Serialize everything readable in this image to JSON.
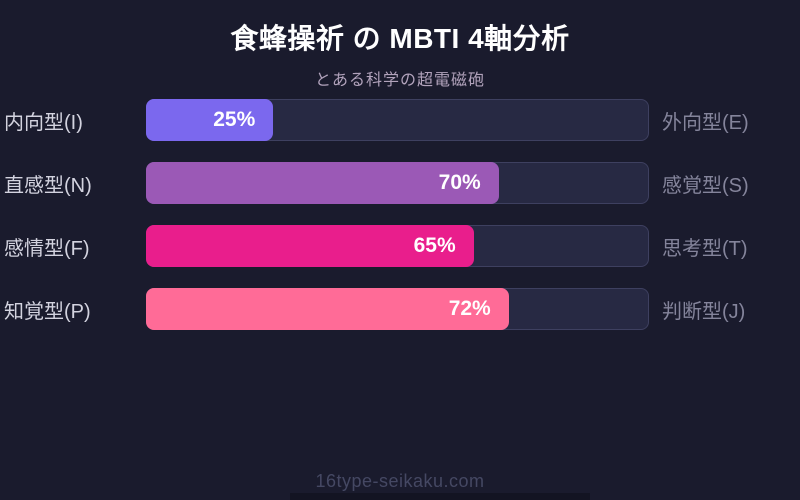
{
  "header": {
    "title": "食蜂操祈 の MBTI 4軸分析",
    "subtitle": "とある科学の超電磁砲"
  },
  "footer": {
    "site_label": "16type-seikaku.com"
  },
  "colors": {
    "background": "#1a1b2d",
    "track_fill": "#272943",
    "track_border": "#3e4060",
    "title_text": "#ffffff",
    "subtitle_text": "#b2a3bc",
    "left_label_text": "#d3d3df",
    "right_label_text": "#84849b",
    "percent_text": "#ffffff",
    "footer_text": "#454863"
  },
  "chart_data": {
    "type": "bar",
    "title": "食蜂操祈 の MBTI 4軸分析",
    "subtitle": "とある科学の超電磁砲",
    "orientation": "horizontal",
    "xlim": [
      0,
      100
    ],
    "value_unit": "%",
    "grid": false,
    "legend": false,
    "axes": [
      {
        "left_label": "内向型(I)",
        "right_label": "外向型(E)",
        "value": 25,
        "value_label": "25%",
        "color": "#7b68ee"
      },
      {
        "left_label": "直感型(N)",
        "right_label": "感覚型(S)",
        "value": 70,
        "value_label": "70%",
        "color": "#9b59b6"
      },
      {
        "left_label": "感情型(F)",
        "right_label": "思考型(T)",
        "value": 65,
        "value_label": "65%",
        "color": "#e91e8c"
      },
      {
        "left_label": "知覚型(P)",
        "right_label": "判断型(J)",
        "value": 72,
        "value_label": "72%",
        "color": "#ff6b97"
      }
    ]
  }
}
